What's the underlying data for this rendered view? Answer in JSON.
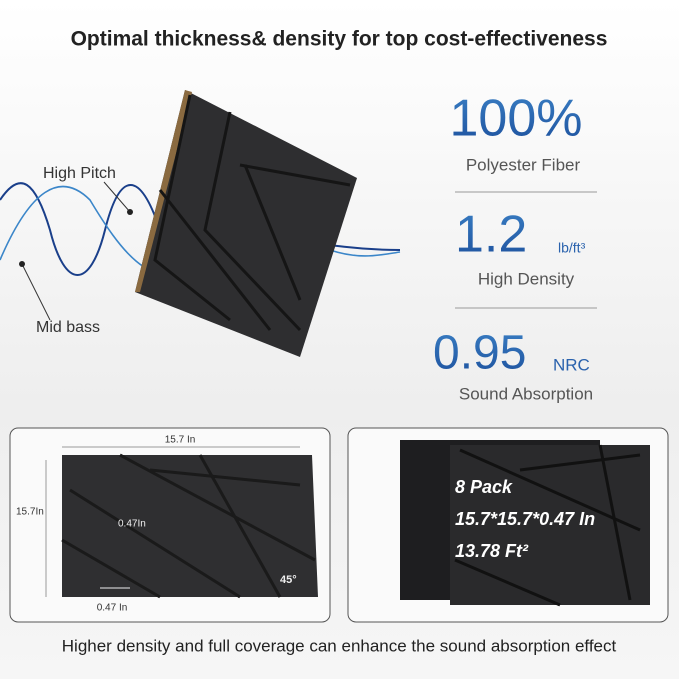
{
  "header": {
    "title": "Optimal thickness& density for top cost-effectiveness"
  },
  "waves": {
    "high_label": "High Pitch",
    "mid_label": "Mid bass"
  },
  "stats": [
    {
      "value": "100%",
      "label": "Polyester Fiber"
    },
    {
      "value": "1.2",
      "unit": "lb/ft³",
      "label": "High Density"
    },
    {
      "value": "0.95",
      "unit": "NRC",
      "label": "Sound Absorption"
    }
  ],
  "dimensions": {
    "width": "15.7 In",
    "height": "15.7In",
    "groove": "0.47In",
    "thickness": "0.47 In",
    "angle": "45°"
  },
  "pack": {
    "count": "8 Pack",
    "size": "15.7*15.7*0.47 In",
    "area": "13.78 Ft²"
  },
  "footer": {
    "text": "Higher density and full coverage can enhance the sound absorption effect"
  }
}
